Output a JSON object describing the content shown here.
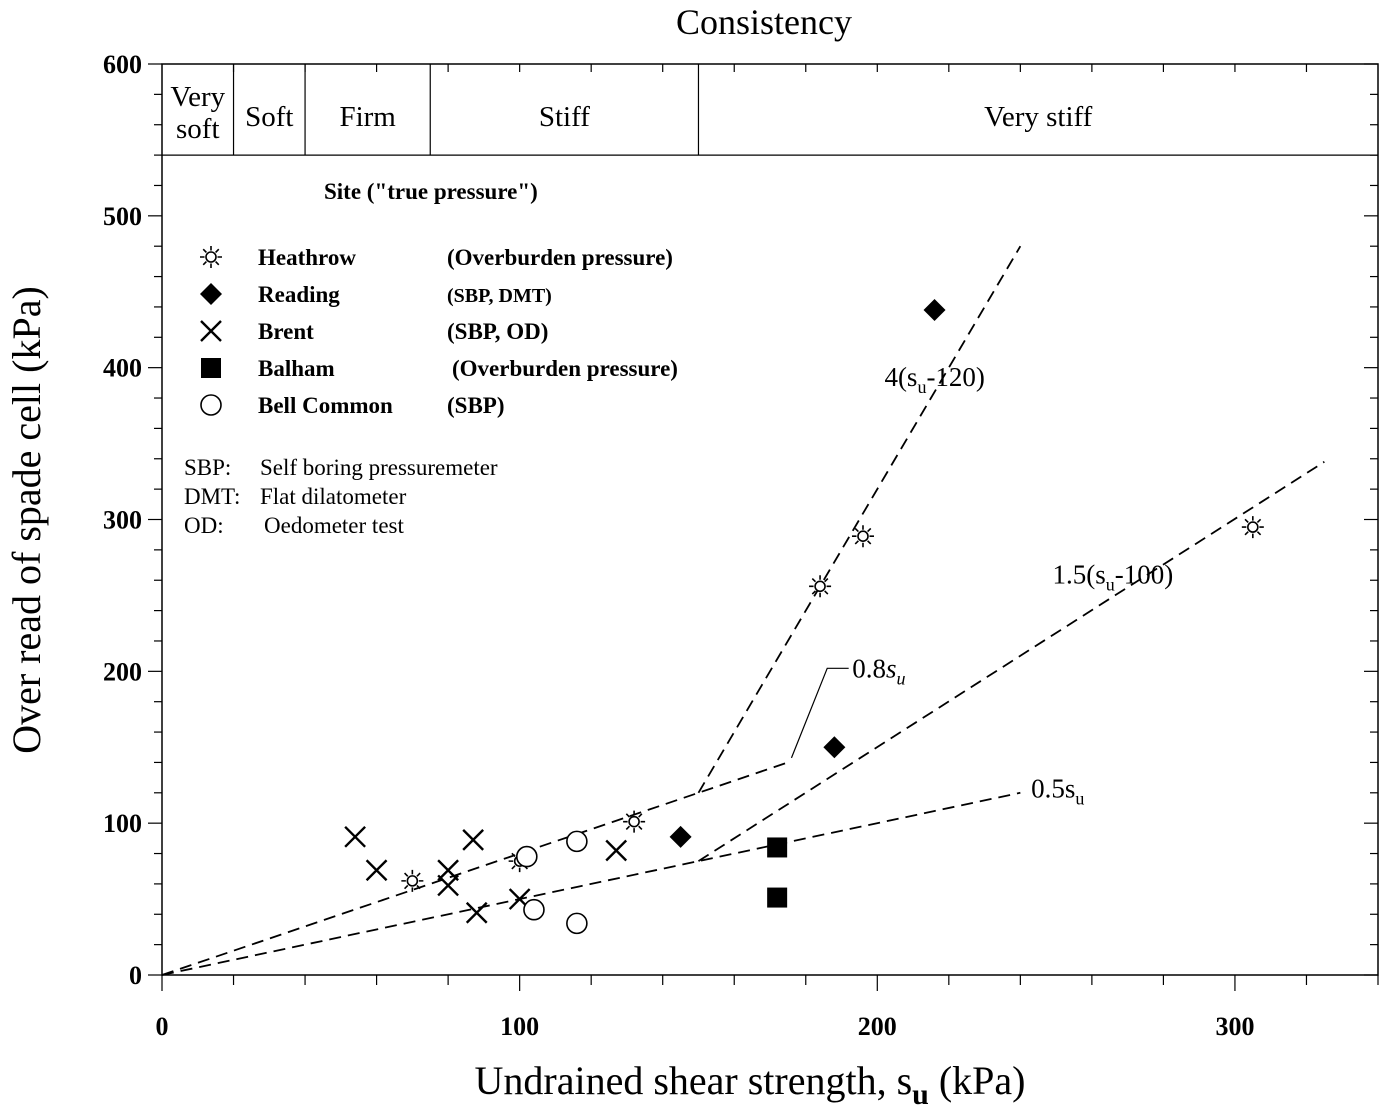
{
  "chart_data": {
    "type": "scatter",
    "title": "Consistency",
    "xlabel": {
      "main": "Undrained shear strength, s",
      "sub": "u",
      "unit": " (kPa)"
    },
    "ylabel": "Over read of spade cell (kPa)",
    "xlim": [
      0,
      340
    ],
    "ylim": [
      0,
      600
    ],
    "x_ticks": [
      0,
      100,
      200,
      300
    ],
    "y_ticks": [
      0,
      100,
      200,
      300,
      400,
      500,
      600
    ],
    "consistency_bands": [
      {
        "label": [
          "Very",
          "soft"
        ],
        "from": 0,
        "to": 20
      },
      {
        "label": [
          "Soft"
        ],
        "from": 20,
        "to": 40
      },
      {
        "label": [
          "Firm"
        ],
        "from": 40,
        "to": 75
      },
      {
        "label": [
          "Stiff"
        ],
        "from": 75,
        "to": 150
      },
      {
        "label": [
          "Very stiff"
        ],
        "from": 150,
        "to": 340
      }
    ],
    "band_bottom": 540,
    "legend_title": "Site (\"true pressure\")",
    "series": [
      {
        "name": "Heathrow",
        "note": "(Overburden pressure)",
        "marker": "sun",
        "points": [
          [
            70,
            62
          ],
          [
            100,
            75
          ],
          [
            132,
            101
          ],
          [
            184,
            256
          ],
          [
            196,
            289
          ],
          [
            305,
            295
          ]
        ]
      },
      {
        "name": "Reading",
        "note": "(SBP, DMT)",
        "marker": "diamond",
        "points": [
          [
            145,
            91
          ],
          [
            188,
            150
          ],
          [
            216,
            438
          ]
        ]
      },
      {
        "name": "Brent",
        "note": "(SBP, OD)",
        "marker": "cross",
        "points": [
          [
            54,
            91
          ],
          [
            60,
            69
          ],
          [
            80,
            69
          ],
          [
            80,
            59
          ],
          [
            87,
            89
          ],
          [
            88,
            41
          ],
          [
            100,
            50
          ],
          [
            127,
            82
          ]
        ]
      },
      {
        "name": "Balham",
        "note": "(Overburden pressure)",
        "marker": "square",
        "points": [
          [
            172,
            84
          ],
          [
            172,
            51
          ]
        ]
      },
      {
        "name": "Bell Common",
        "note": "(SBP)",
        "marker": "circle",
        "points": [
          [
            102,
            78
          ],
          [
            104,
            43
          ],
          [
            116,
            88
          ],
          [
            116,
            34
          ]
        ]
      }
    ],
    "lines": [
      {
        "label": {
          "main": "0.5s",
          "sub": "u",
          "rest": ""
        },
        "points": [
          [
            0,
            0
          ],
          [
            240,
            120
          ]
        ],
        "x": 243,
        "y": 117
      },
      {
        "label": {
          "main": "0.8",
          "sub": "u",
          "rest": "",
          "italic": "s"
        },
        "points": [
          [
            0,
            0
          ],
          [
            175,
            140
          ]
        ],
        "x": 193,
        "y": 196
      },
      {
        "label": {
          "main": "1.5(s",
          "sub": "u",
          "rest": "-100)"
        },
        "points": [
          [
            150,
            75
          ],
          [
            325,
            338
          ]
        ],
        "x": 249,
        "y": 258
      },
      {
        "label": {
          "main": "4(s",
          "sub": "u",
          "rest": "-120)"
        },
        "points": [
          [
            150,
            120
          ],
          [
            240,
            480
          ]
        ],
        "x": 202,
        "y": 388
      }
    ],
    "abbreviations": [
      {
        "key": "SBP:",
        "text": "Self boring pressuremeter"
      },
      {
        "key": "DMT:",
        "text": "Flat dilatometer"
      },
      {
        "key": "OD:",
        "text": "Oedometer test"
      }
    ],
    "grid": false,
    "legend_position": "top-left"
  }
}
